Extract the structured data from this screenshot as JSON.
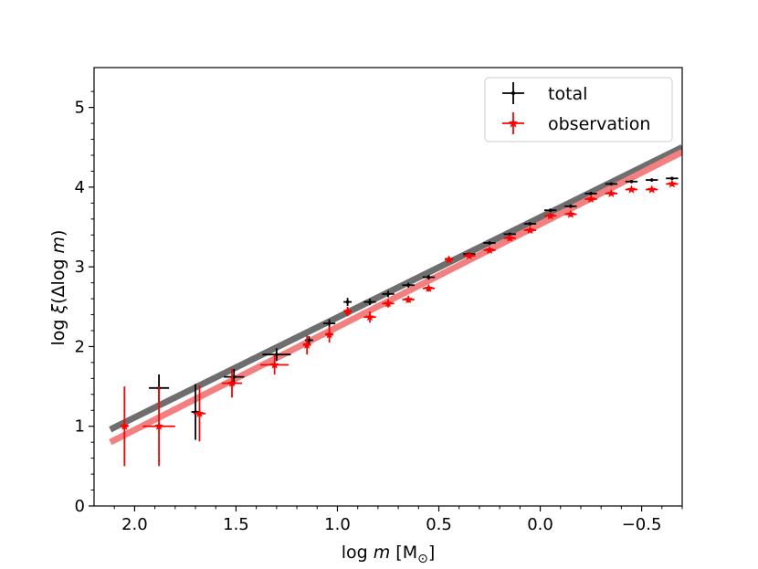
{
  "chart_data": {
    "type": "scatter",
    "xlabel_parts": [
      "log ",
      "m",
      " [M",
      "⊙",
      "]"
    ],
    "ylabel_parts": [
      "log ",
      "ξ",
      "(Δlog ",
      "m",
      ")"
    ],
    "xlim": [
      2.2,
      -0.7
    ],
    "ylim": [
      0,
      5.5
    ],
    "x_ticks": [
      2.0,
      1.5,
      1.0,
      0.5,
      0.0,
      -0.5
    ],
    "x_tick_labels": [
      "2.0",
      "1.5",
      "1.0",
      "0.5",
      "0.0",
      "−0.5"
    ],
    "y_ticks": [
      0,
      1,
      2,
      3,
      4,
      5
    ],
    "y_tick_labels": [
      "0",
      "1",
      "2",
      "3",
      "4",
      "5"
    ],
    "grid": false,
    "legend_position": "upper-right",
    "series": [
      {
        "name": "total",
        "color": "#000000",
        "marker": "plus",
        "fit_line": {
          "color": "#6e6e6e",
          "x": [
            2.12,
            -0.7
          ],
          "y": [
            0.96,
            4.5
          ]
        },
        "points": [
          {
            "x": 1.88,
            "y": 1.48,
            "xerr": 0.05,
            "yerr": 0.17
          },
          {
            "x": 1.7,
            "y": 1.18,
            "xerr": 0.02,
            "yerr": 0.35
          },
          {
            "x": 1.51,
            "y": 1.62,
            "xerr": 0.05,
            "yerr": 0.1
          },
          {
            "x": 1.3,
            "y": 1.9,
            "xerr": 0.07,
            "yerr": 0.08
          },
          {
            "x": 1.14,
            "y": 2.08,
            "xerr": 0.02,
            "yerr": 0.05
          },
          {
            "x": 1.04,
            "y": 2.29,
            "xerr": 0.03,
            "yerr": 0.05
          },
          {
            "x": 0.95,
            "y": 2.56,
            "xerr": 0.02,
            "yerr": 0.05
          },
          {
            "x": 0.84,
            "y": 2.56,
            "xerr": 0.03,
            "yerr": 0.04
          },
          {
            "x": 0.75,
            "y": 2.66,
            "xerr": 0.03,
            "yerr": 0.04
          },
          {
            "x": 0.65,
            "y": 2.77,
            "xerr": 0.03,
            "yerr": 0.03
          },
          {
            "x": 0.55,
            "y": 2.87,
            "xerr": 0.03,
            "yerr": 0.03
          },
          {
            "x": 0.45,
            "y": 3.1,
            "xerr": 0.02,
            "yerr": 0.03
          },
          {
            "x": 0.35,
            "y": 3.16,
            "xerr": 0.03,
            "yerr": 0.02
          },
          {
            "x": 0.25,
            "y": 3.3,
            "xerr": 0.03,
            "yerr": 0.02
          },
          {
            "x": 0.15,
            "y": 3.41,
            "xerr": 0.03,
            "yerr": 0.02
          },
          {
            "x": 0.05,
            "y": 3.54,
            "xerr": 0.03,
            "yerr": 0.02
          },
          {
            "x": -0.05,
            "y": 3.71,
            "xerr": 0.03,
            "yerr": 0.02
          },
          {
            "x": -0.15,
            "y": 3.76,
            "xerr": 0.03,
            "yerr": 0.02
          },
          {
            "x": -0.25,
            "y": 3.92,
            "xerr": 0.03,
            "yerr": 0.02
          },
          {
            "x": -0.35,
            "y": 4.04,
            "xerr": 0.03,
            "yerr": 0.02
          },
          {
            "x": -0.45,
            "y": 4.07,
            "xerr": 0.03,
            "yerr": 0.02
          },
          {
            "x": -0.55,
            "y": 4.09,
            "xerr": 0.03,
            "yerr": 0.02
          },
          {
            "x": -0.65,
            "y": 4.11,
            "xerr": 0.03,
            "yerr": 0.02
          }
        ]
      },
      {
        "name": "observation",
        "color": "#ff0000",
        "marker": "star",
        "fit_line": {
          "color": "#f28080",
          "x": [
            2.12,
            -0.7
          ],
          "y": [
            0.8,
            4.44
          ]
        },
        "points": [
          {
            "x": 2.05,
            "y": 1.0,
            "xerr": 0.02,
            "yerr": 0.5
          },
          {
            "x": 1.88,
            "y": 1.0,
            "xerr": 0.08,
            "yerr": 0.5
          },
          {
            "x": 1.68,
            "y": 1.16,
            "xerr": 0.03,
            "yerr": 0.35
          },
          {
            "x": 1.52,
            "y": 1.54,
            "xerr": 0.05,
            "yerr": 0.18
          },
          {
            "x": 1.31,
            "y": 1.77,
            "xerr": 0.07,
            "yerr": 0.12
          },
          {
            "x": 1.15,
            "y": 2.02,
            "xerr": 0.02,
            "yerr": 0.12
          },
          {
            "x": 1.04,
            "y": 2.15,
            "xerr": 0.02,
            "yerr": 0.1
          },
          {
            "x": 0.95,
            "y": 2.44,
            "xerr": 0.02,
            "yerr": 0.06
          },
          {
            "x": 0.84,
            "y": 2.37,
            "xerr": 0.03,
            "yerr": 0.07
          },
          {
            "x": 0.75,
            "y": 2.54,
            "xerr": 0.03,
            "yerr": 0.05
          },
          {
            "x": 0.65,
            "y": 2.59,
            "xerr": 0.03,
            "yerr": 0.04
          },
          {
            "x": 0.55,
            "y": 2.73,
            "xerr": 0.03,
            "yerr": 0.04
          },
          {
            "x": 0.45,
            "y": 3.09,
            "xerr": 0.02,
            "yerr": 0.03
          },
          {
            "x": 0.35,
            "y": 3.14,
            "xerr": 0.03,
            "yerr": 0.03
          },
          {
            "x": 0.25,
            "y": 3.21,
            "xerr": 0.03,
            "yerr": 0.03
          },
          {
            "x": 0.15,
            "y": 3.36,
            "xerr": 0.03,
            "yerr": 0.03
          },
          {
            "x": 0.05,
            "y": 3.46,
            "xerr": 0.03,
            "yerr": 0.03
          },
          {
            "x": -0.05,
            "y": 3.64,
            "xerr": 0.03,
            "yerr": 0.02
          },
          {
            "x": -0.15,
            "y": 3.66,
            "xerr": 0.03,
            "yerr": 0.03
          },
          {
            "x": -0.25,
            "y": 3.85,
            "xerr": 0.03,
            "yerr": 0.02
          },
          {
            "x": -0.35,
            "y": 3.92,
            "xerr": 0.03,
            "yerr": 0.02
          },
          {
            "x": -0.45,
            "y": 3.97,
            "xerr": 0.03,
            "yerr": 0.02
          },
          {
            "x": -0.55,
            "y": 3.97,
            "xerr": 0.03,
            "yerr": 0.02
          },
          {
            "x": -0.65,
            "y": 4.04,
            "xerr": 0.03,
            "yerr": 0.02
          }
        ]
      }
    ]
  }
}
